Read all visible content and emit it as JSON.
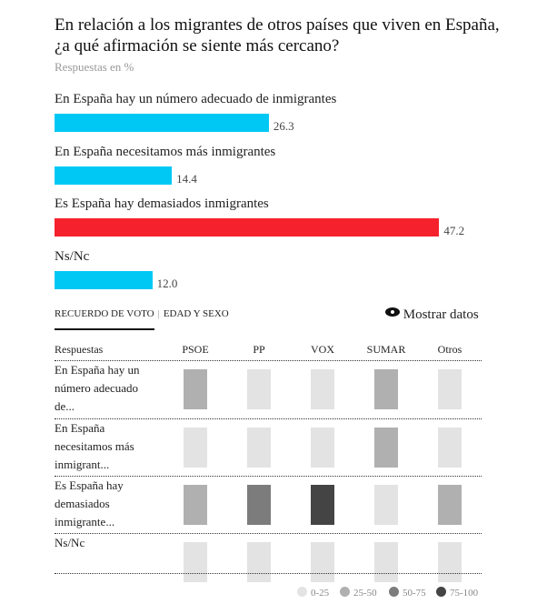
{
  "title": "En relación a los migrantes de otros países que viven en España, ¿a qué afirmación se siente más cercano?",
  "subtitle": "Respuestas en %",
  "chart_data": [
    {
      "type": "bar",
      "orientation": "horizontal",
      "categories": [
        "En España hay un número adecuado de inmigrantes",
        "En España necesitamos más inmigrantes",
        "Es España hay demasiados inmigrantes",
        "Ns/Nc"
      ],
      "values": [
        26.3,
        14.4,
        47.2,
        12.0
      ],
      "value_labels": [
        "26.3",
        "14.4",
        "47.2",
        "12.0"
      ],
      "colors": [
        "#00c8f5",
        "#00c8f5",
        "#f5222d",
        "#00c8f5"
      ]
    },
    {
      "type": "heatmap",
      "row_header": "Respuestas",
      "columns": [
        "PSOE",
        "PP",
        "VOX",
        "SUMAR",
        "Otros"
      ],
      "rows": [
        "En España hay un número adecuado de...",
        "En España necesitamos más inmigrant...",
        "Es España hay demasiados inmigrante...",
        "Ns/Nc"
      ],
      "bins": [
        [
          "25-50",
          "0-25",
          "0-25",
          "25-50",
          "0-25"
        ],
        [
          "0-25",
          "0-25",
          "0-25",
          "25-50",
          "0-25"
        ],
        [
          "25-50",
          "50-75",
          "75-100",
          "0-25",
          "25-50"
        ],
        [
          "0-25",
          "0-25",
          "0-25",
          "0-25",
          "0-25"
        ]
      ],
      "legend": [
        {
          "label": "0-25",
          "color": "#e3e3e3"
        },
        {
          "label": "25-50",
          "color": "#b0b0b0"
        },
        {
          "label": "50-75",
          "color": "#7c7c7c"
        },
        {
          "label": "75-100",
          "color": "#444444"
        }
      ]
    }
  ],
  "tabs": [
    "RECUERDO DE VOTO",
    "EDAD Y SEXO"
  ],
  "show_data": "Mostrar datos"
}
